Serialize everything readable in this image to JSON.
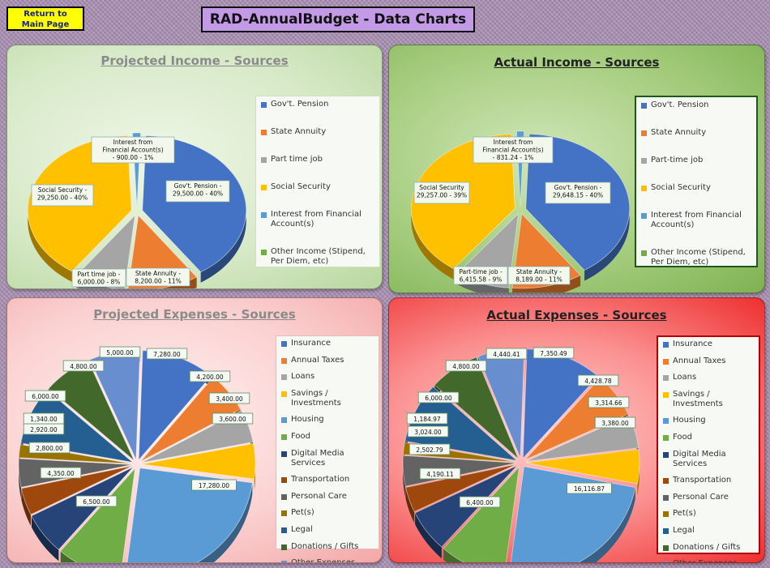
{
  "header": {
    "return_line1": "Return to",
    "return_line2": "Main Page",
    "title": "RAD-AnnualBudget - Data Charts"
  },
  "colors": {
    "blue": "#4472c4",
    "orange": "#ed7d31",
    "gray": "#a5a5a5",
    "yellow": "#ffc000",
    "lightblue": "#5b9bd5",
    "green": "#70ad47",
    "navy": "#264478",
    "brown": "#9e480e",
    "darkgray": "#636363",
    "olive": "#997300",
    "cobalt": "#255e91",
    "darkgreen": "#43682b",
    "periwinkle": "#698ed0"
  },
  "chart_data": [
    {
      "type": "pie",
      "title": "Projected Income - Sources",
      "categories": [
        "Gov't. Pension",
        "State Annuity",
        "Part time job",
        "Social Security",
        "Interest from Financial Account(s)",
        "Other Income (Stipend, Per Diem, etc)"
      ],
      "legend": [
        "Gov't. Pension",
        "State Annuity",
        "Part time job",
        "Social Security",
        "Interest from Financial Account(s)",
        "Other Income (Stipend, Per Diem, etc)"
      ],
      "values": [
        29500,
        8200,
        6000,
        29250,
        900,
        0
      ],
      "labels": [
        [
          "Gov't. Pension -",
          "29,500.00 - 40%"
        ],
        [
          "State Annuity -",
          "8,200.00 - 11%"
        ],
        [
          "Part time job -",
          "6,000.00 - 8%"
        ],
        [
          "Social Security -",
          "29,250.00 - 40%"
        ],
        [
          "Interest from",
          "Financial Account(s)",
          "- 900.00 - 1%"
        ],
        []
      ]
    },
    {
      "type": "pie",
      "title": "Actual Income - Sources",
      "categories": [
        "Gov't. Pension",
        "State Annuity",
        "Part-time job",
        "Social Security",
        "Interest from Financial Account(s)",
        "Other Income (Stipend, Per Diem, etc)"
      ],
      "legend": [
        "Gov't. Pension",
        "State Annuity",
        "Part-time job",
        "Social Security",
        "Interest from Financial Account(s)",
        "Other Income (Stipend, Per Diem, etc)"
      ],
      "values": [
        29648.15,
        8189.0,
        6415.58,
        29257.0,
        831.24,
        0
      ],
      "labels": [
        [
          "Gov't. Pension -",
          "29,648.15 - 40%"
        ],
        [
          "State Annuity -",
          "8,189.00 - 11%"
        ],
        [
          "Part-time job -",
          "6,415.58 - 9%"
        ],
        [
          "Social Security",
          "29,257.00 - 39%"
        ],
        [
          "Interest from",
          "Financial Account(s)",
          "- 831.24 - 1%"
        ],
        []
      ]
    },
    {
      "type": "pie",
      "title": "Projected Expenses - Sources",
      "categories": [
        "Insurance",
        "Annual Taxes",
        "Loans",
        "Savings / Investments",
        "Housing",
        "Food",
        "Digital Media Services",
        "Transportation",
        "Personal Care",
        "Pet(s)",
        "Legal",
        "Donations / Gifts",
        "Other Expenses"
      ],
      "legend": [
        "Insurance",
        "Annual Taxes",
        "Loans",
        "Savings / Investments",
        "Housing",
        "Food",
        "Digital Media Services",
        "Transportation",
        "Personal Care",
        "Pet(s)",
        "Legal",
        "Donations / Gifts",
        "Other Expenses"
      ],
      "values": [
        7280,
        4200,
        3400,
        3600,
        17280,
        6500,
        4350,
        2800,
        2920,
        1340,
        6000,
        4800,
        5000
      ],
      "labels": [
        "7,280.00",
        "4,200.00",
        "3,400.00",
        "3,600.00",
        "17,280.00",
        "6,500.00",
        "4,350.00",
        "2,800.00",
        "2,920.00",
        "1,340.00",
        "6,000.00",
        "4,800.00",
        "5,000.00"
      ]
    },
    {
      "type": "pie",
      "title": "Actual Expenses - Sources",
      "categories": [
        "Insurance",
        "Annual Taxes",
        "Loans",
        "Savings / Investments",
        "Housing",
        "Food",
        "Digital Media Services",
        "Transportation",
        "Personal Care",
        "Pet(s)",
        "Legal",
        "Donations / Gifts",
        "Other Expenses"
      ],
      "legend": [
        "Insurance",
        "Annual Taxes",
        "Loans",
        "Savings / Investments",
        "Housing",
        "Food",
        "Digital Media Services",
        "Transportation",
        "Personal Care",
        "Pet(s)",
        "Legal",
        "Donations / Gifts",
        "Other Expenses"
      ],
      "values": [
        7350.49,
        4428.78,
        3314.66,
        3380.0,
        16116.87,
        6400.0,
        4190.11,
        2502.79,
        3024.0,
        1184.97,
        6000.0,
        4800.0,
        4440.41
      ],
      "labels": [
        "7,350.49",
        "4,428.78",
        "3,314.66",
        "3,380.00",
        "16,116.87",
        "6,400.00",
        "4,190.11",
        "2,502.79",
        "3,024.00",
        "1,184.97",
        "6,000.00",
        "4,800.00",
        "4,440.41"
      ]
    }
  ]
}
